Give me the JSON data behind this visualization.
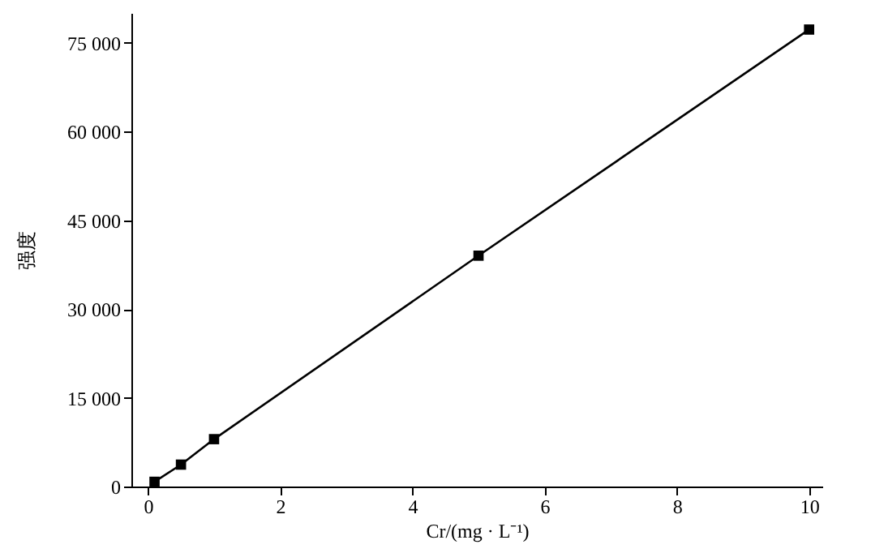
{
  "chart_data": {
    "type": "line",
    "xlabel": "Cr/(mg · L⁻¹)",
    "ylabel": "强度",
    "x": [
      0.1,
      0.5,
      1,
      5,
      10
    ],
    "series": [
      {
        "color": "#000000",
        "values": [
          800,
          3700,
          8000,
          39000,
          77200
        ]
      }
    ],
    "marker": "square",
    "line_style": "solid",
    "grid": false,
    "xlim": [
      -0.25,
      10.2
    ],
    "xticks": [
      0,
      2,
      4,
      6,
      8,
      10
    ],
    "ylim": [
      0,
      80000
    ],
    "yticks": [
      0,
      {
        "value": 15000,
        "label": "15 000"
      },
      {
        "value": 30000,
        "label": "30 000"
      },
      {
        "value": 45000,
        "label": "45 000"
      },
      {
        "value": 60000,
        "label": "60 000"
      },
      {
        "value": 75000,
        "label": "75 000"
      }
    ]
  }
}
